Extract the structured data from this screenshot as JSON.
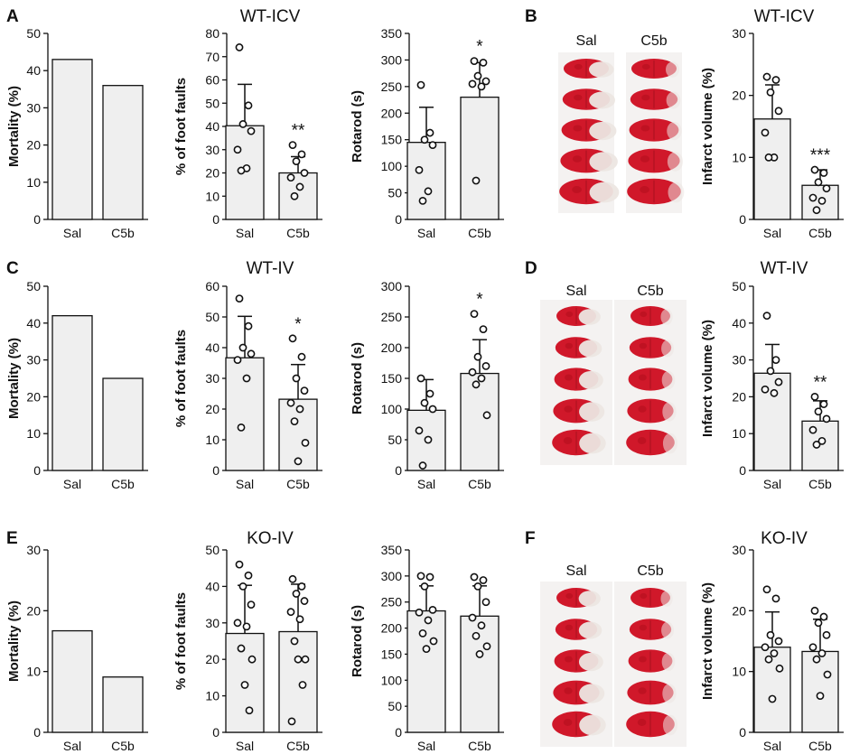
{
  "chart_data": [
    {
      "id": "A-mortality",
      "type": "bar",
      "row": "A",
      "panel_letter": "A",
      "title": "",
      "ylabel": "Mortality (%)",
      "ylim": [
        0,
        50
      ],
      "ticks": [
        0,
        10,
        20,
        30,
        40,
        50
      ],
      "categories": [
        "Sal",
        "C5b"
      ],
      "values": [
        43,
        36
      ],
      "sd": [
        null,
        null
      ],
      "points": [
        [],
        []
      ],
      "sig": [
        "",
        ""
      ],
      "colors": {
        "bar": "#efefef",
        "stroke": "#111111"
      }
    },
    {
      "id": "A-footfaults",
      "type": "bar",
      "row": "A",
      "title": "WT-ICV",
      "ylabel": "% of foot faults",
      "ylim": [
        0,
        80
      ],
      "ticks": [
        0,
        10,
        20,
        30,
        40,
        50,
        60,
        70,
        80
      ],
      "categories": [
        "Sal",
        "C5b"
      ],
      "values": [
        40.3,
        20
      ],
      "sd": [
        17.8,
        7
      ],
      "points": [
        [
          74,
          49,
          41,
          38,
          30,
          22,
          21
        ],
        [
          32,
          28,
          25,
          20,
          18,
          14,
          10
        ]
      ],
      "sig": [
        "",
        "**"
      ]
    },
    {
      "id": "A-rotarod",
      "type": "bar",
      "row": "A",
      "title": "",
      "ylabel": "Rotarod (s)",
      "ylim": [
        0,
        350
      ],
      "ticks": [
        0,
        50,
        100,
        150,
        200,
        250,
        300,
        350
      ],
      "categories": [
        "Sal",
        "C5b"
      ],
      "values": [
        145,
        230
      ],
      "sd": [
        66,
        65
      ],
      "points": [
        [
          253,
          163,
          150,
          140,
          93,
          53,
          35
        ],
        [
          298,
          295,
          270,
          260,
          255,
          250,
          73
        ]
      ],
      "sig": [
        "",
        "*"
      ]
    },
    {
      "id": "B-infarct",
      "type": "bar",
      "row": "A",
      "panel_letter": "B",
      "title": "WT-ICV",
      "ylabel": "Infarct volume (%)",
      "ylim": [
        0,
        30
      ],
      "ticks": [
        0,
        10,
        20,
        30
      ],
      "categories": [
        "Sal",
        "C5b"
      ],
      "values": [
        16.2,
        5.5
      ],
      "sd": [
        5.5,
        2.5
      ],
      "points": [
        [
          23,
          22.5,
          20.5,
          17.5,
          14,
          10,
          10
        ],
        [
          8,
          7.5,
          6,
          5,
          3.5,
          3,
          1.5
        ]
      ],
      "sig": [
        "",
        "***"
      ]
    },
    {
      "id": "C-mortality",
      "type": "bar",
      "row": "C",
      "panel_letter": "C",
      "title": "",
      "ylabel": "Mortality (%)",
      "ylim": [
        0,
        50
      ],
      "ticks": [
        0,
        10,
        20,
        30,
        40,
        50
      ],
      "categories": [
        "Sal",
        "C5b"
      ],
      "values": [
        42,
        25
      ],
      "sd": [
        null,
        null
      ],
      "points": [
        [],
        []
      ],
      "sig": [
        "",
        ""
      ]
    },
    {
      "id": "C-footfaults",
      "type": "bar",
      "row": "C",
      "title": "WT-IV",
      "ylabel": "% of foot faults",
      "ylim": [
        0,
        60
      ],
      "ticks": [
        0,
        10,
        20,
        30,
        40,
        50,
        60
      ],
      "categories": [
        "Sal",
        "C5b"
      ],
      "values": [
        36.7,
        23.2
      ],
      "sd": [
        13.5,
        11.3
      ],
      "points": [
        [
          56,
          47,
          40,
          38,
          36,
          30,
          14
        ],
        [
          43,
          37,
          30,
          26,
          22,
          20,
          16,
          9,
          3
        ]
      ],
      "sig": [
        "",
        "*"
      ]
    },
    {
      "id": "C-rotarod",
      "type": "bar",
      "row": "C",
      "title": "",
      "ylabel": "Rotarod (s)",
      "ylim": [
        0,
        300
      ],
      "ticks": [
        0,
        50,
        100,
        150,
        200,
        250,
        300
      ],
      "categories": [
        "Sal",
        "C5b"
      ],
      "values": [
        98,
        158
      ],
      "sd": [
        50,
        55
      ],
      "points": [
        [
          150,
          125,
          110,
          100,
          65,
          50,
          8
        ],
        [
          255,
          230,
          185,
          170,
          160,
          150,
          140,
          90
        ]
      ],
      "sig": [
        "",
        "*"
      ]
    },
    {
      "id": "D-infarct",
      "type": "bar",
      "row": "C",
      "panel_letter": "D",
      "title": "WT-IV",
      "ylabel": "Infarct volume (%)",
      "ylim": [
        0,
        50
      ],
      "ticks": [
        0,
        10,
        20,
        30,
        40,
        50
      ],
      "categories": [
        "Sal",
        "C5b"
      ],
      "values": [
        26.4,
        13.4
      ],
      "sd": [
        7.8,
        5.5
      ],
      "points": [
        [
          42,
          30,
          27,
          24,
          22,
          21
        ],
        [
          20,
          18,
          16,
          14,
          11,
          8,
          7
        ]
      ],
      "sig": [
        "",
        "**"
      ]
    },
    {
      "id": "E-mortality",
      "type": "bar",
      "row": "E",
      "panel_letter": "E",
      "title": "",
      "ylabel": "Mortality (%)",
      "ylim": [
        0,
        30
      ],
      "ticks": [
        0,
        10,
        20,
        30
      ],
      "categories": [
        "Sal",
        "C5b"
      ],
      "values": [
        16.7,
        9.1
      ],
      "sd": [
        null,
        null
      ],
      "points": [
        [],
        []
      ],
      "sig": [
        "",
        ""
      ]
    },
    {
      "id": "E-footfaults",
      "type": "bar",
      "row": "E",
      "title": "KO-IV",
      "ylabel": "% of foot faults",
      "ylim": [
        0,
        50
      ],
      "ticks": [
        0,
        10,
        20,
        30,
        40,
        50
      ],
      "categories": [
        "Sal",
        "C5b"
      ],
      "values": [
        27.1,
        27.6
      ],
      "sd": [
        13.2,
        13
      ],
      "points": [
        [
          46,
          43,
          40,
          35,
          30,
          29,
          23,
          20,
          13,
          6
        ],
        [
          42,
          40,
          38,
          36,
          33,
          31,
          25,
          20,
          20,
          13,
          3
        ]
      ],
      "sig": [
        "",
        ""
      ]
    },
    {
      "id": "E-rotarod",
      "type": "bar",
      "row": "E",
      "title": "",
      "ylabel": "Rotarod (s)",
      "ylim": [
        0,
        350
      ],
      "ticks": [
        0,
        50,
        100,
        150,
        200,
        250,
        300,
        350
      ],
      "categories": [
        "Sal",
        "C5b"
      ],
      "values": [
        233,
        223
      ],
      "sd": [
        48,
        58
      ],
      "points": [
        [
          300,
          298,
          280,
          235,
          230,
          215,
          190,
          175,
          160
        ],
        [
          298,
          292,
          280,
          250,
          220,
          205,
          185,
          165,
          150
        ]
      ],
      "sig": [
        "",
        ""
      ]
    },
    {
      "id": "F-infarct",
      "type": "bar",
      "row": "E",
      "panel_letter": "F",
      "title": "KO-IV",
      "ylabel": "Infarct volume (%)",
      "ylim": [
        0,
        30
      ],
      "ticks": [
        0,
        10,
        20,
        30
      ],
      "categories": [
        "Sal",
        "C5b"
      ],
      "values": [
        14,
        13.3
      ],
      "sd": [
        5.8,
        5.3
      ],
      "points": [
        [
          23.5,
          22,
          16,
          15,
          14,
          13,
          12,
          10.5,
          5.5
        ],
        [
          20,
          19,
          18,
          16,
          14,
          13,
          12,
          9.5,
          6
        ]
      ],
      "sig": [
        "",
        ""
      ]
    }
  ],
  "brain_panels": [
    {
      "id": "B-brains",
      "panel_letter": "B",
      "labels": [
        "Sal",
        "C5b"
      ],
      "sections": 5
    },
    {
      "id": "D-brains",
      "panel_letter": "D",
      "labels": [
        "Sal",
        "C5b"
      ],
      "sections": 5
    },
    {
      "id": "F-brains",
      "panel_letter": "F",
      "labels": [
        "Sal",
        "C5b"
      ],
      "sections": 5
    }
  ],
  "colors": {
    "infarct_tissue": "#d0182a",
    "healthy_tissue": "#ece6e2",
    "bar_fill": "#efefef"
  }
}
